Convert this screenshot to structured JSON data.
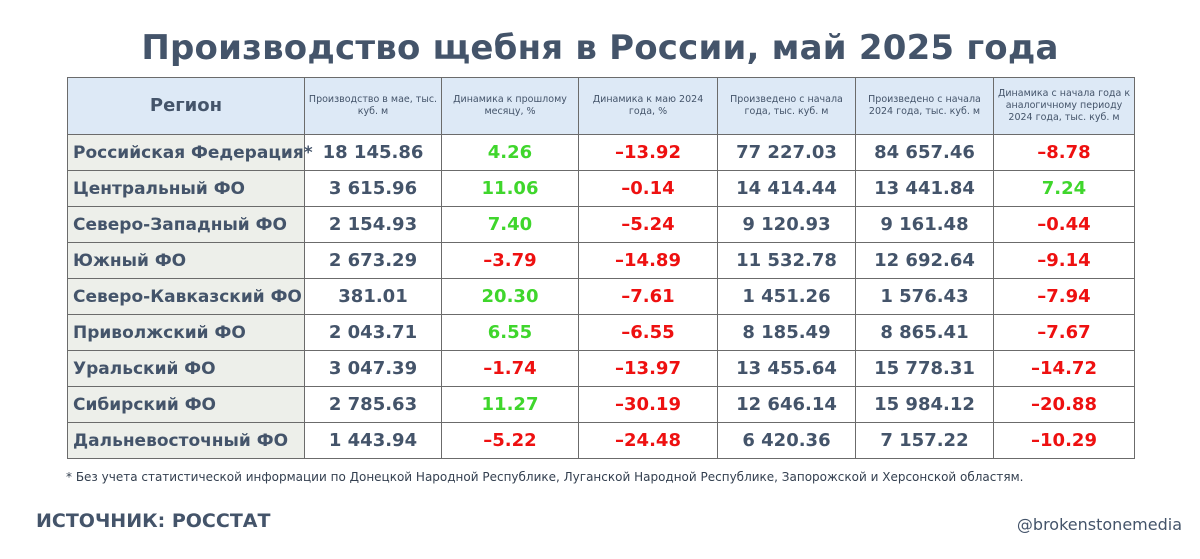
{
  "title": "Производство щебня в России, май 2025 года",
  "table": {
    "headers": [
      "Регион",
      "Производство в мае, тыс. куб. м",
      "Динамика к прошлому месяцу, %",
      "Динамика к маю 2024 года, %",
      "Произведено с начала года, тыс. куб. м",
      "Произведено с начала 2024 года, тыс. куб. м",
      "Динамика с начала года к аналогичному периоду 2024 года, тыс. куб. м"
    ],
    "rows": [
      {
        "region": "Российская Федерация*",
        "may": "18 145.86",
        "mom": "4.26",
        "mom_sign": "pos",
        "yoy": "–13.92",
        "yoy_sign": "neg",
        "ytd": "77 227.03",
        "ytd2024": "84 657.46",
        "ytd_dyn": "–8.78",
        "ytd_dyn_sign": "neg"
      },
      {
        "region": "Центральный ФО",
        "may": "3 615.96",
        "mom": "11.06",
        "mom_sign": "pos",
        "yoy": "–0.14",
        "yoy_sign": "neg",
        "ytd": "14 414.44",
        "ytd2024": "13 441.84",
        "ytd_dyn": "7.24",
        "ytd_dyn_sign": "pos"
      },
      {
        "region": "Северо-Западный ФО",
        "may": "2 154.93",
        "mom": "7.40",
        "mom_sign": "pos",
        "yoy": "–5.24",
        "yoy_sign": "neg",
        "ytd": "9 120.93",
        "ytd2024": "9 161.48",
        "ytd_dyn": "–0.44",
        "ytd_dyn_sign": "neg"
      },
      {
        "region": "Южный ФО",
        "may": "2 673.29",
        "mom": "–3.79",
        "mom_sign": "neg",
        "yoy": "–14.89",
        "yoy_sign": "neg",
        "ytd": "11 532.78",
        "ytd2024": "12 692.64",
        "ytd_dyn": "–9.14",
        "ytd_dyn_sign": "neg"
      },
      {
        "region": "Северо-Кавказский ФО",
        "may": "381.01",
        "mom": "20.30",
        "mom_sign": "pos",
        "yoy": "–7.61",
        "yoy_sign": "neg",
        "ytd": "1 451.26",
        "ytd2024": "1 576.43",
        "ytd_dyn": "–7.94",
        "ytd_dyn_sign": "neg"
      },
      {
        "region": "Приволжский ФО",
        "may": "2 043.71",
        "mom": "6.55",
        "mom_sign": "pos",
        "yoy": "–6.55",
        "yoy_sign": "neg",
        "ytd": "8 185.49",
        "ytd2024": "8 865.41",
        "ytd_dyn": "–7.67",
        "ytd_dyn_sign": "neg"
      },
      {
        "region": "Уральский ФО",
        "may": "3 047.39",
        "mom": "–1.74",
        "mom_sign": "neg",
        "yoy": "–13.97",
        "yoy_sign": "neg",
        "ytd": "13 455.64",
        "ytd2024": "15 778.31",
        "ytd_dyn": "–14.72",
        "ytd_dyn_sign": "neg"
      },
      {
        "region": "Сибирский ФО",
        "may": "2 785.63",
        "mom": "11.27",
        "mom_sign": "pos",
        "yoy": "–30.19",
        "yoy_sign": "neg",
        "ytd": "12 646.14",
        "ytd2024": "15 984.12",
        "ytd_dyn": "–20.88",
        "ytd_dyn_sign": "neg"
      },
      {
        "region": "Дальневосточный ФО",
        "may": "1 443.94",
        "mom": "–5.22",
        "mom_sign": "neg",
        "yoy": "–24.48",
        "yoy_sign": "neg",
        "ytd": "6 420.36",
        "ytd2024": "7 157.22",
        "ytd_dyn": "–10.29",
        "ytd_dyn_sign": "neg"
      }
    ]
  },
  "footnote": "* Без учета статистической информации по Донецкой Народной Республике, Луганской Народной Республике, Запорожской и Херсонской областям.",
  "source": "ИСТОЧНИК: РОССТАТ",
  "handle": "@brokenstonemedia",
  "colors": {
    "positive": "#3fd62c",
    "negative": "#ee1010",
    "text": "#44546a",
    "header_bg": "#dde9f6",
    "region_bg": "#edefea"
  }
}
